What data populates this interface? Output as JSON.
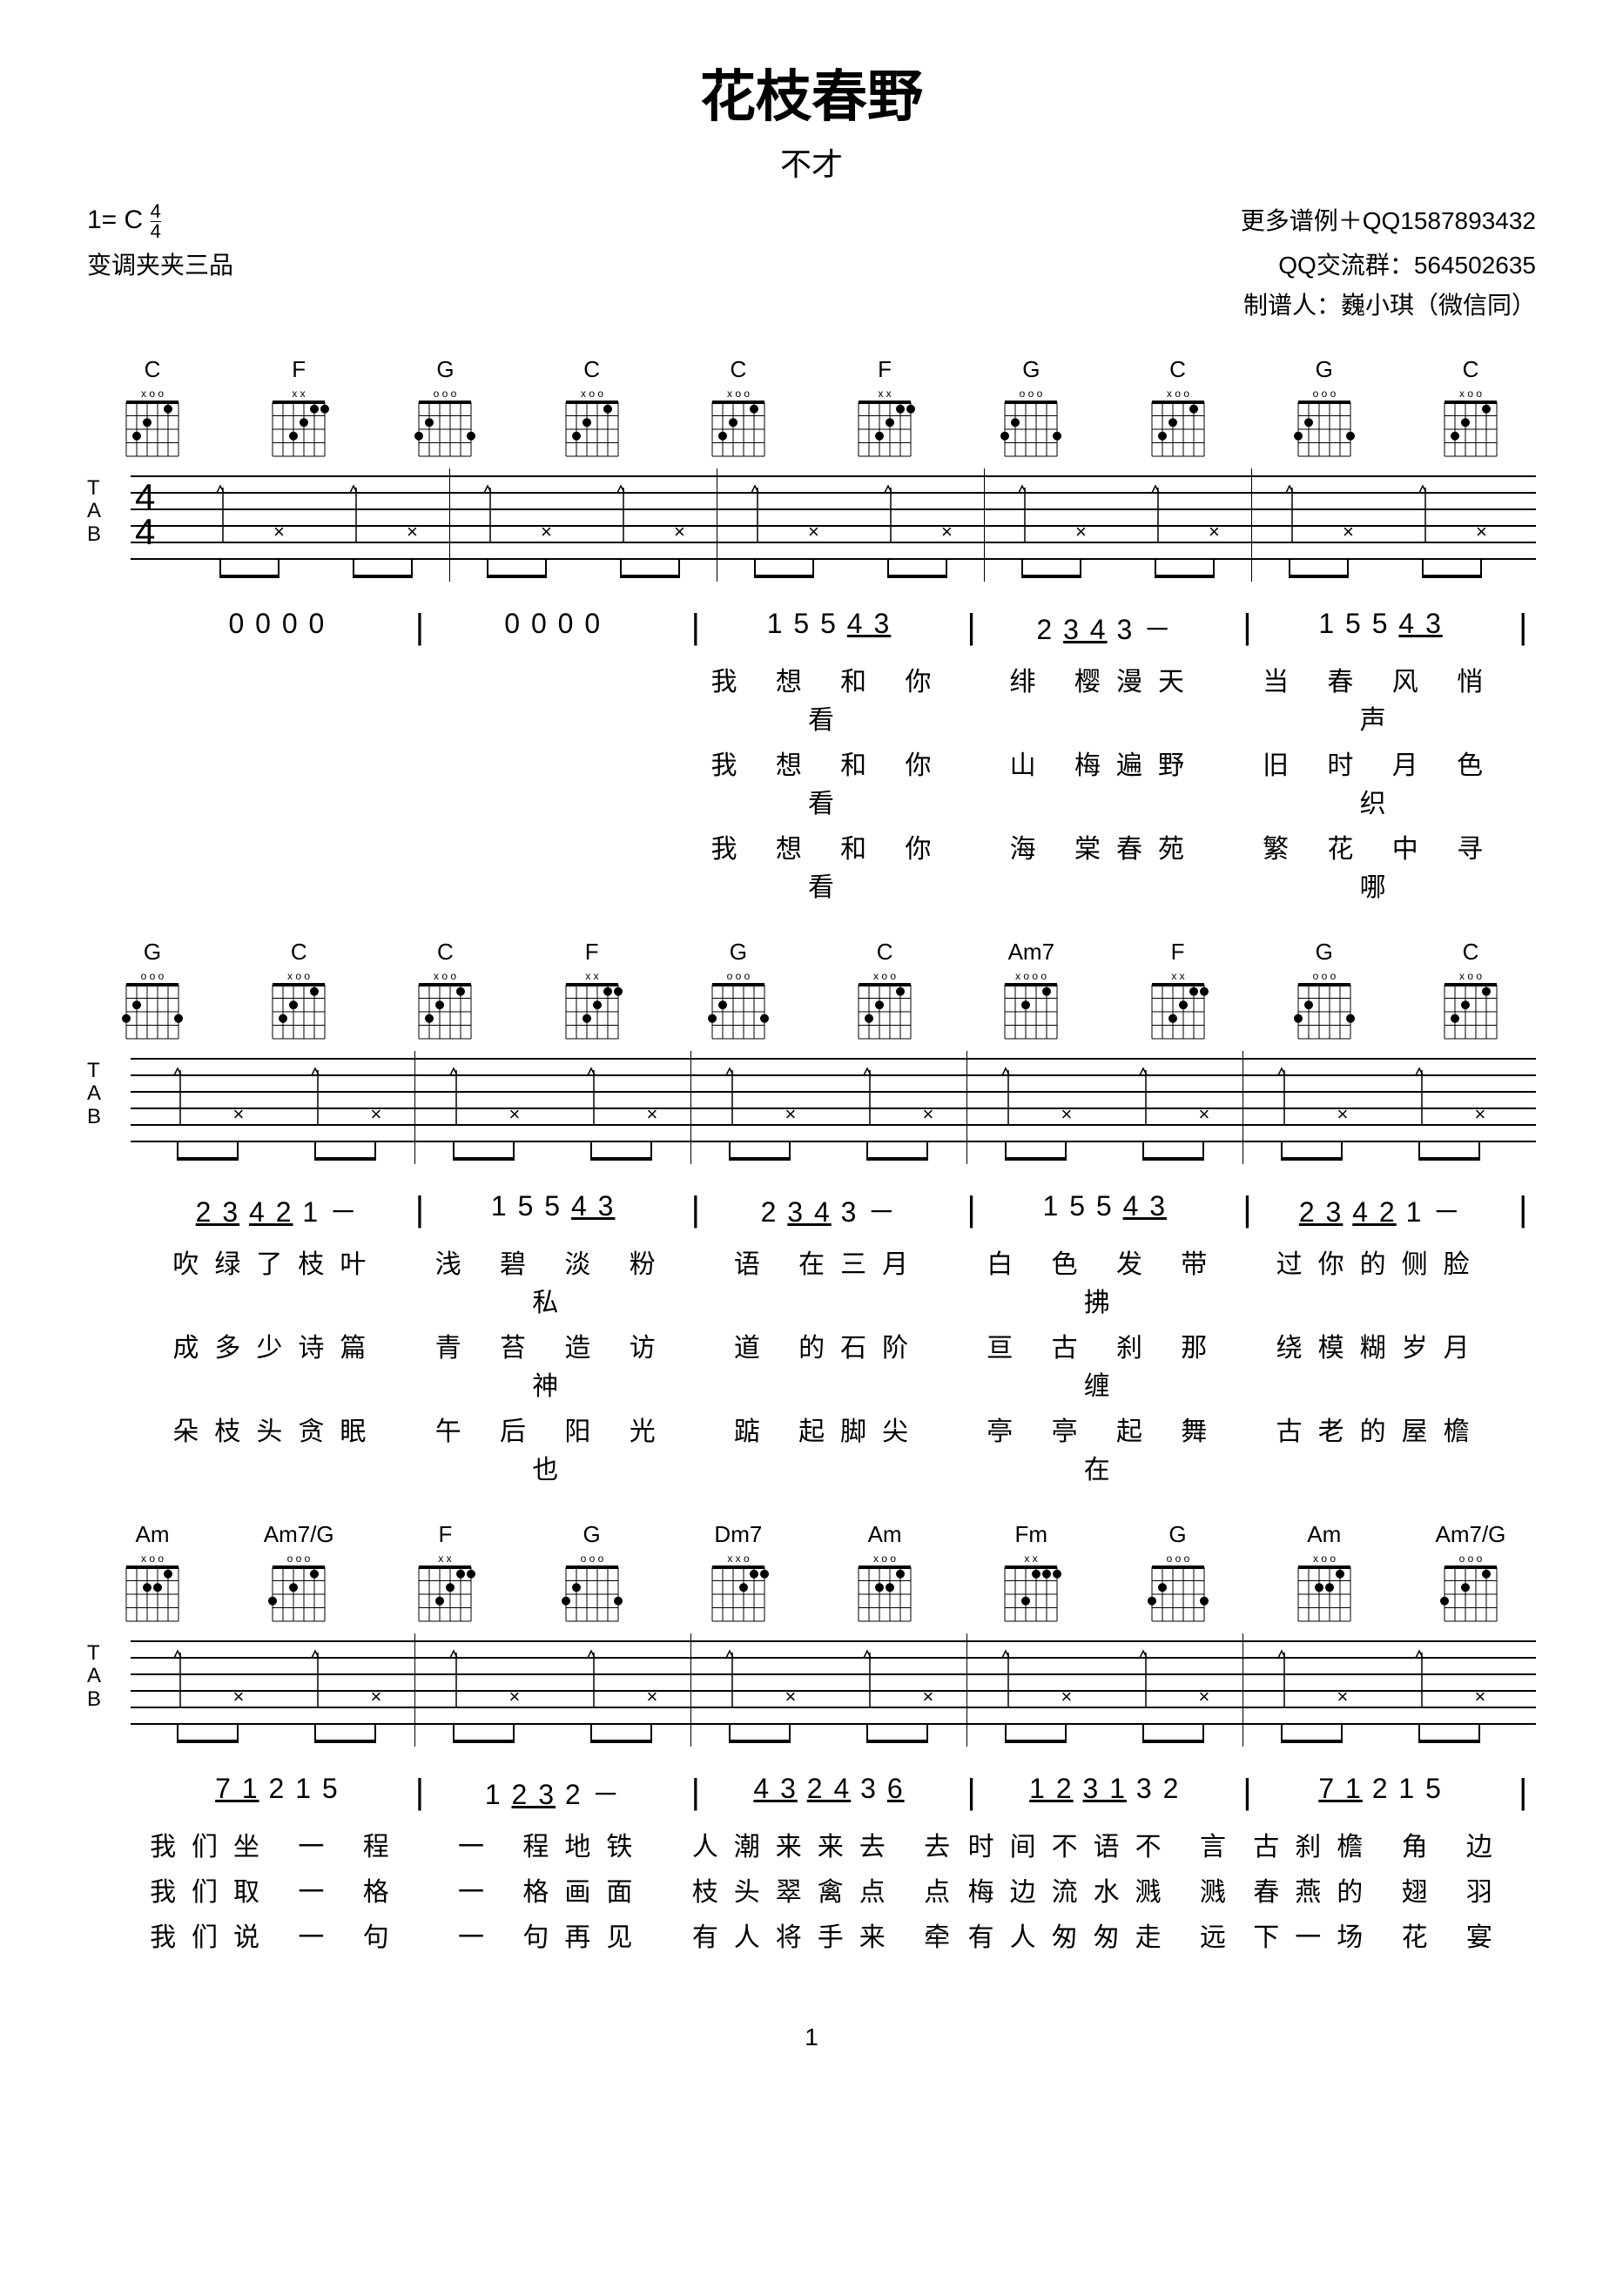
{
  "header": {
    "title": "花枝春野",
    "subtitle": "不才",
    "key": "1= C",
    "timesig_top": "4",
    "timesig_bot": "4",
    "capo": "变调夹夹三品",
    "contact_line1": "更多谱例＋QQ1587893432",
    "contact_line2": "QQ交流群：564502635",
    "contact_line3": "制谱人：巍小琪（微信同）"
  },
  "page_number": "1",
  "systems": [
    {
      "chords": [
        "C",
        "F",
        "G",
        "C",
        "C",
        "F",
        "G",
        "C",
        "G",
        "C"
      ],
      "tab_clef": "T\nA\nB",
      "tab_ts_top": "4",
      "tab_ts_bot": "4",
      "show_ts": true,
      "numbers": [
        {
          "bar": "",
          "n": "0 0 0 0"
        },
        {
          "bar": "|",
          "n": "0 0 0 0"
        },
        {
          "bar": "|",
          "n": "1 5 5 <u>4 3</u>"
        },
        {
          "bar": "|",
          "n": "2 <u>3 4</u> 3 －"
        },
        {
          "bar": "|",
          "n": "1 5 5 <u>4 3</u>"
        }
      ],
      "lyrics": [
        [
          "",
          "",
          "我 想 和 你看",
          "绯 樱漫天",
          "当 春 风 悄声"
        ],
        [
          "",
          "",
          "我 想 和 你看",
          "山 梅遍野",
          "旧 时 月 色织"
        ],
        [
          "",
          "",
          "我 想 和 你看",
          "海 棠春苑",
          "繁 花 中 寻哪"
        ]
      ]
    },
    {
      "chords": [
        "G",
        "C",
        "C",
        "F",
        "G",
        "C",
        "Am7",
        "F",
        "G",
        "C"
      ],
      "tab_clef": "T\nA\nB",
      "show_ts": false,
      "numbers": [
        {
          "bar": "",
          "n": "<u>2 3</u> <u>4 2</u> 1 －"
        },
        {
          "bar": "|",
          "n": "1 5 5 <u>4 3</u>"
        },
        {
          "bar": "|",
          "n": "2 <u>3 4</u> 3 －"
        },
        {
          "bar": "|",
          "n": "1 5 5 <u>4 3</u>"
        },
        {
          "bar": "|",
          "n": "<u>2 3</u> <u>4 2</u> 1 －"
        }
      ],
      "lyrics": [
        [
          "吹绿了枝叶",
          "浅 碧 淡 粉私",
          "语 在三月",
          "白 色 发 带拂",
          "过你的侧脸"
        ],
        [
          "成多少诗篇",
          "青 苔 造 访神",
          "道 的石阶",
          "亘 古 刹 那缠",
          "绕模糊岁月"
        ],
        [
          "朵枝头贪眠",
          "午 后 阳 光也",
          "踮 起脚尖",
          "亭 亭 起 舞在",
          "古老的屋檐"
        ]
      ]
    },
    {
      "chords": [
        "Am",
        "Am7/G",
        "F",
        "G",
        "Dm7",
        "Am",
        "Fm",
        "G",
        "Am",
        "Am7/G"
      ],
      "tab_clef": "T\nA\nB",
      "show_ts": false,
      "numbers": [
        {
          "bar": "",
          "n": "<u>7 1</u> 2 1 5"
        },
        {
          "bar": "|",
          "n": "1 <u>2 3</u> 2 －"
        },
        {
          "bar": "|",
          "n": "<u>4 3</u> <u>2 4</u> 3 <u>6</u>"
        },
        {
          "bar": "|",
          "n": "<u>1 2</u> <u>3 1</u> 3 2"
        },
        {
          "bar": "|",
          "n": "<u>7 1</u> 2 1 5"
        }
      ],
      "lyrics": [
        [
          "我们坐 一 程",
          "一 程地铁",
          "人潮来来去 去",
          "时间不语不 言",
          "古刹檐 角 边"
        ],
        [
          "我们取 一 格",
          "一 格画面",
          "枝头翠禽点 点",
          "梅边流水溅 溅",
          "春燕的 翅 羽"
        ],
        [
          "我们说 一 句",
          "一 句再见",
          "有人将手来 牵",
          "有人匆匆走 远",
          "下一场 花 宴"
        ]
      ]
    }
  ],
  "chord_shapes": {
    "C": {
      "open": "x  o o",
      "frets": [
        [
          0,
          3,
          2,
          0,
          1,
          0
        ]
      ],
      "dots": [
        [
          5,
          3
        ],
        [
          4,
          2
        ],
        [
          2,
          1
        ]
      ]
    },
    "F": {
      "open": "x x    ",
      "frets": [
        [
          0,
          0,
          3,
          2,
          1,
          1
        ]
      ],
      "dots": [
        [
          4,
          3
        ],
        [
          3,
          2
        ],
        [
          2,
          1
        ],
        [
          1,
          1
        ]
      ]
    },
    "G": {
      "open": " o o o  ",
      "frets": [
        [
          3,
          2,
          0,
          0,
          0,
          3
        ]
      ],
      "dots": [
        [
          6,
          3
        ],
        [
          5,
          2
        ],
        [
          1,
          3
        ]
      ]
    },
    "Am7": {
      "open": "x o o o",
      "frets": [
        [
          0,
          0,
          2,
          0,
          1,
          0
        ]
      ],
      "dots": [
        [
          4,
          2
        ],
        [
          2,
          1
        ]
      ]
    },
    "Am": {
      "open": "x o   o",
      "frets": [
        [
          0,
          0,
          2,
          2,
          1,
          0
        ]
      ],
      "dots": [
        [
          4,
          2
        ],
        [
          3,
          2
        ],
        [
          2,
          1
        ]
      ]
    },
    "Am7/G": {
      "open": "  o o o",
      "frets": [
        [
          3,
          0,
          2,
          0,
          1,
          0
        ]
      ],
      "dots": [
        [
          6,
          3
        ],
        [
          4,
          2
        ],
        [
          2,
          1
        ]
      ]
    },
    "Dm7": {
      "open": "x x o  ",
      "frets": [
        [
          0,
          0,
          0,
          2,
          1,
          1
        ]
      ],
      "dots": [
        [
          3,
          2
        ],
        [
          2,
          1
        ],
        [
          1,
          1
        ]
      ]
    },
    "Fm": {
      "open": "x x    ",
      "frets": [
        [
          0,
          0,
          3,
          1,
          1,
          1
        ]
      ],
      "dots": [
        [
          4,
          3
        ],
        [
          3,
          1
        ],
        [
          2,
          1
        ],
        [
          1,
          1
        ]
      ]
    }
  },
  "colors": {
    "bg": "#ffffff",
    "fg": "#000000"
  }
}
